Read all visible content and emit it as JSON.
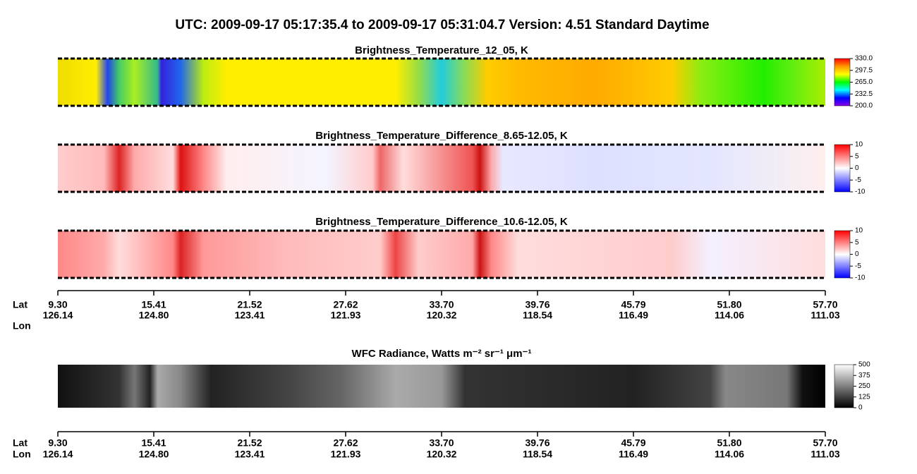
{
  "title": "UTC:  2009-09-17   05:17:35.4  to  2009-09-17   05:31:04.7    Version: 4.51  Standard Daytime",
  "chart_data": [
    {
      "type": "heatmap",
      "title": "Brightness_Temperature_12_05, K",
      "colorbar": {
        "ylim": [
          200,
          330
        ],
        "yticks": [
          {
            "value": 330,
            "label": "330.0"
          },
          {
            "value": 297.5,
            "label": "297.5"
          },
          {
            "value": 265,
            "label": "265.0"
          },
          {
            "value": 232.5,
            "label": "232.5"
          },
          {
            "value": 200,
            "label": "200.0"
          }
        ],
        "colors": [
          "#8a00e6",
          "#0000ff",
          "#00ffff",
          "#00ff00",
          "#ffff00",
          "#ff9900",
          "#ff0000"
        ]
      }
    },
    {
      "type": "heatmap",
      "title": "Brightness_Temperature_Difference_8.65-12.05, K",
      "colorbar": {
        "ylim": [
          -10,
          10
        ],
        "yticks": [
          10,
          5,
          0,
          -5,
          -10
        ],
        "colors": [
          "#0000ff",
          "#ffffff",
          "#ff0000"
        ]
      }
    },
    {
      "type": "heatmap",
      "title": "Brightness_Temperature_Difference_10.6-12.05, K",
      "colorbar": {
        "ylim": [
          -10,
          10
        ],
        "yticks": [
          10,
          5,
          0,
          -5,
          -10
        ],
        "colors": [
          "#0000ff",
          "#ffffff",
          "#ff0000"
        ]
      }
    },
    {
      "type": "heatmap",
      "title": "WFC Radiance, Watts m⁻² sr⁻¹ μm⁻¹",
      "colorbar": {
        "ylim": [
          0,
          500
        ],
        "yticks": [
          500,
          375,
          250,
          125,
          0
        ],
        "colors": [
          "#000000",
          "#ffffff"
        ]
      }
    }
  ],
  "x_axes": [
    {
      "row_labels": [
        "Lat",
        "Lon"
      ],
      "lat": [
        "9.30",
        "15.41",
        "21.52",
        "27.62",
        "33.70",
        "39.76",
        "45.79",
        "51.80",
        "57.70"
      ],
      "lon": [
        "126.14",
        "124.80",
        "123.41",
        "121.93",
        "120.32",
        "118.54",
        "116.49",
        "114.06",
        "111.03"
      ]
    },
    {
      "row_labels": [
        "Lat",
        "Lon"
      ],
      "lat": [
        "9.30",
        "15.41",
        "21.52",
        "27.62",
        "33.70",
        "39.76",
        "45.79",
        "51.80",
        "57.70"
      ],
      "lon": [
        "126.14",
        "124.80",
        "123.41",
        "121.93",
        "120.32",
        "118.54",
        "116.49",
        "114.06",
        "111.03"
      ]
    }
  ]
}
